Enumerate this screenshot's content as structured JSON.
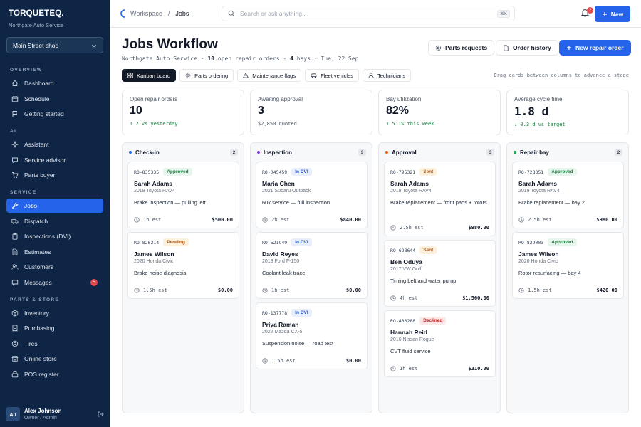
{
  "brand": {
    "name": "TORQUETEQ.",
    "subtitle": "Northgate Auto Service",
    "shop": "Main Street shop"
  },
  "sidebar": {
    "sections": [
      {
        "title": "OVERVIEW",
        "items": [
          {
            "label": "Dashboard",
            "icon": "home-icon"
          },
          {
            "label": "Schedule",
            "icon": "calendar-icon"
          },
          {
            "label": "Getting started",
            "icon": "flag-icon"
          }
        ]
      },
      {
        "title": "AI",
        "items": [
          {
            "label": "Assistant",
            "icon": "sparkle-icon"
          },
          {
            "label": "Service advisor",
            "icon": "chat-icon"
          },
          {
            "label": "Parts buyer",
            "icon": "cart-icon"
          }
        ]
      },
      {
        "title": "SERVICE",
        "items": [
          {
            "label": "Jobs",
            "icon": "wrench-icon",
            "active": true
          },
          {
            "label": "Dispatch",
            "icon": "truck-icon"
          },
          {
            "label": "Inspections (DVI)",
            "icon": "clipboard-icon"
          },
          {
            "label": "Estimates",
            "icon": "document-icon"
          },
          {
            "label": "Customers",
            "icon": "users-icon"
          },
          {
            "label": "Messages",
            "icon": "message-icon",
            "badge": "5"
          }
        ]
      },
      {
        "title": "PARTS & STORE",
        "items": [
          {
            "label": "Inventory",
            "icon": "box-icon"
          },
          {
            "label": "Purchasing",
            "icon": "receipt-icon"
          },
          {
            "label": "Tires",
            "icon": "tire-icon"
          },
          {
            "label": "Online store",
            "icon": "store-icon"
          },
          {
            "label": "POS register",
            "icon": "register-icon"
          }
        ]
      }
    ]
  },
  "user": {
    "initials": "AJ",
    "name": "Alex Johnson",
    "role": "Owner / Admin"
  },
  "topbar": {
    "crumb_root": "Workspace",
    "crumb_sep": "/",
    "crumb_current": "Jobs",
    "search_placeholder": "Search or ask anything...",
    "search_kbd": "⌘K",
    "notif_count": "2",
    "new_label": "New"
  },
  "page": {
    "title": "Jobs Workflow",
    "shop": "Northgate Auto Service",
    "open_count": "10",
    "open_label": "open repair orders",
    "bays_count": "4",
    "bays_label": "bays",
    "date": "Tue, 22 Sep",
    "dot": "·"
  },
  "actions": {
    "parts_requests": "Parts requests",
    "order_history": "Order history",
    "new_repair_order": "New repair order"
  },
  "tabs": [
    {
      "label": "Kanban board",
      "icon": "grid-icon",
      "active": true
    },
    {
      "label": "Parts ordering",
      "icon": "gear-icon"
    },
    {
      "label": "Maintenance flags",
      "icon": "warning-icon"
    },
    {
      "label": "Fleet vehicles",
      "icon": "car-icon"
    },
    {
      "label": "Technicians",
      "icon": "user-icon"
    }
  ],
  "hint": "Drag cards between columns to advance a stage",
  "stats": [
    {
      "label": "Open repair orders",
      "value": "10",
      "delta": "↑ 2 vs yesterday",
      "tone": "up"
    },
    {
      "label": "Awaiting approval",
      "value": "3",
      "delta": "$2,850 quoted",
      "tone": "neutral"
    },
    {
      "label": "Bay utilization",
      "value": "82%",
      "delta": "↑ 5.1% this week",
      "tone": "up"
    },
    {
      "label": "Average cycle time",
      "value": "1.8 d",
      "delta": "↓ 0.3 d vs target",
      "tone": "down"
    }
  ],
  "columns": [
    {
      "title": "Check-in",
      "count": "2",
      "color": "#2563eb",
      "cards": [
        {
          "ro": "RO-835335",
          "status": "Approved",
          "kind": "approved",
          "customer": "Sarah Adams",
          "vehicle": "2019 Toyota RAV4",
          "job": "Brake inspection — pulling left",
          "est": "1h est",
          "amount": "$500.00"
        },
        {
          "ro": "RO-826214",
          "status": "Pending",
          "kind": "pending",
          "customer": "James Wilson",
          "vehicle": "2020 Honda Civic",
          "job": "Brake noise diagnosis",
          "est": "1.5h est",
          "amount": "$0.00"
        }
      ]
    },
    {
      "title": "Inspection",
      "count": "3",
      "color": "#7c3aed",
      "cards": [
        {
          "ro": "RO-045459",
          "status": "In DVI",
          "kind": "dvi",
          "customer": "Maria Chen",
          "vehicle": "2021 Subaru Outback",
          "job": "60k service — full inspection",
          "est": "2h est",
          "amount": "$840.00"
        },
        {
          "ro": "RO-521949",
          "status": "In DVI",
          "kind": "dvi",
          "customer": "David Reyes",
          "vehicle": "2018 Ford F-150",
          "job": "Coolant leak trace",
          "est": "1h est",
          "amount": "$0.00"
        },
        {
          "ro": "RO-137778",
          "status": "In DVI",
          "kind": "dvi",
          "customer": "Priya Raman",
          "vehicle": "2022 Mazda CX-5",
          "job": "Suspension noise — road test",
          "est": "1.5h est",
          "amount": "$0.00"
        }
      ]
    },
    {
      "title": "Approval",
      "count": "3",
      "color": "#ea580c",
      "cards": [
        {
          "ro": "RO-795321",
          "status": "Sent",
          "kind": "sent",
          "customer": "Sarah Adams",
          "vehicle": "2019 Toyota RAV4",
          "job": "Brake replacement — front pads + rotors",
          "est": "2.5h est",
          "amount": "$980.00"
        },
        {
          "ro": "RO-628644",
          "status": "Sent",
          "kind": "sent",
          "customer": "Ben Oduya",
          "vehicle": "2017 VW Golf",
          "job": "Timing belt and water pump",
          "est": "4h est",
          "amount": "$1,560.00"
        },
        {
          "ro": "RO-480288",
          "status": "Declined",
          "kind": "declined",
          "customer": "Hannah Reid",
          "vehicle": "2016 Nissan Rogue",
          "job": "CVT fluid service",
          "est": "1h est",
          "amount": "$310.00"
        }
      ]
    },
    {
      "title": "Repair bay",
      "count": "2",
      "color": "#16a34a",
      "cards": [
        {
          "ro": "RO-728351",
          "status": "Approved",
          "kind": "approved",
          "customer": "Sarah Adams",
          "vehicle": "2019 Toyota RAV4",
          "job": "Brake replacement — bay 2",
          "est": "2.5h est",
          "amount": "$980.00"
        },
        {
          "ro": "RO-829003",
          "status": "Approved",
          "kind": "approved",
          "customer": "James Wilson",
          "vehicle": "2020 Honda Civic",
          "job": "Rotor resurfacing — bay 4",
          "est": "1.5h est",
          "amount": "$420.00"
        }
      ]
    }
  ]
}
